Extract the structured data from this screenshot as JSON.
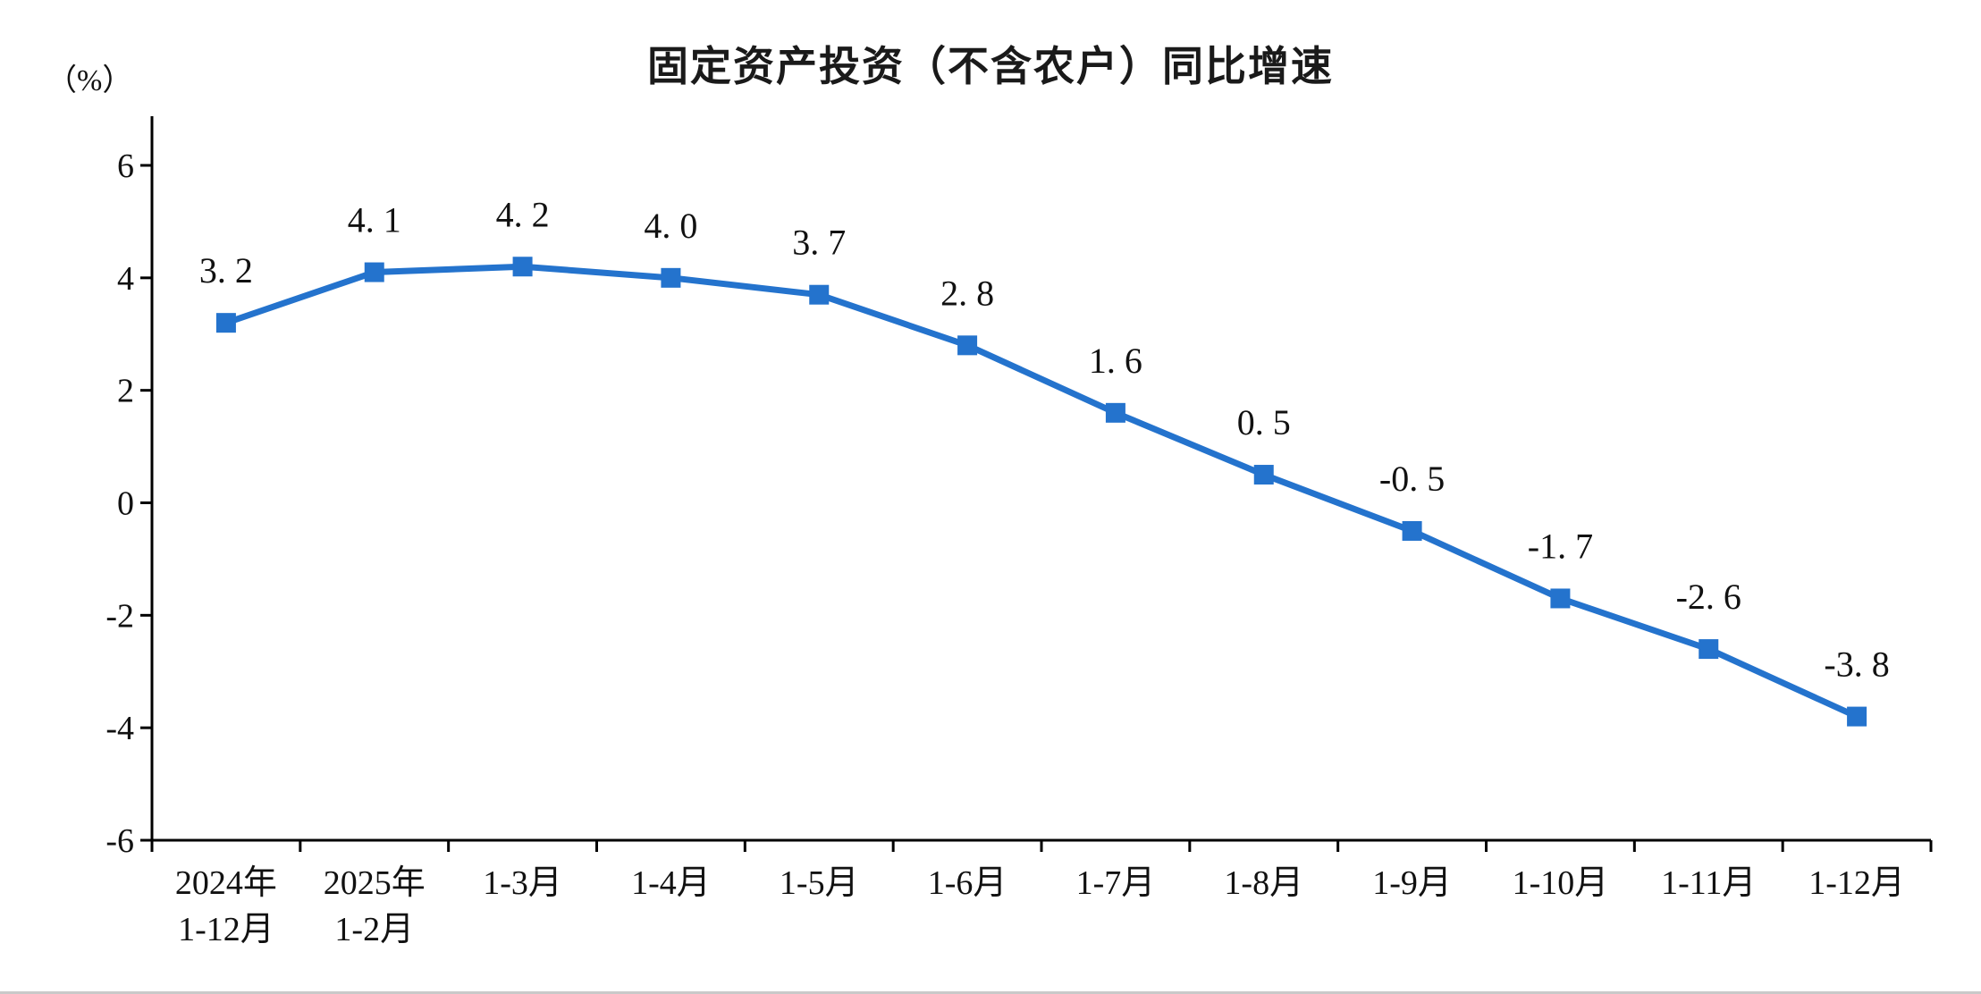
{
  "chart_data": {
    "type": "line",
    "title": "固定资产投资（不含农户）同比增速",
    "unit_label": "（%）",
    "categories": [
      "2024年\n1-12月",
      "2025年\n1-2月",
      "1-3月",
      "1-4月",
      "1-5月",
      "1-6月",
      "1-7月",
      "1-8月",
      "1-9月",
      "1-10月",
      "1-11月",
      "1-12月"
    ],
    "values": [
      3.2,
      4.1,
      4.2,
      4.0,
      3.7,
      2.8,
      1.6,
      0.5,
      -0.5,
      -1.7,
      -2.6,
      -3.8
    ],
    "point_labels": [
      "3. 2",
      "4. 1",
      "4. 2",
      "4. 0",
      "3. 7",
      "2. 8",
      "1. 6",
      "0. 5",
      "-0. 5",
      "-1. 7",
      "-2. 6",
      "-3. 8"
    ],
    "ylim": [
      -6,
      6
    ],
    "yticks": [
      6,
      4,
      2,
      0,
      -2,
      -4,
      -6
    ],
    "xlabel": "",
    "ylabel": "（%）",
    "grid": false,
    "legend_position": "none",
    "marker": "square",
    "line_color": "#2473cd",
    "axis_color": "#000000",
    "label_color": "#111111"
  }
}
